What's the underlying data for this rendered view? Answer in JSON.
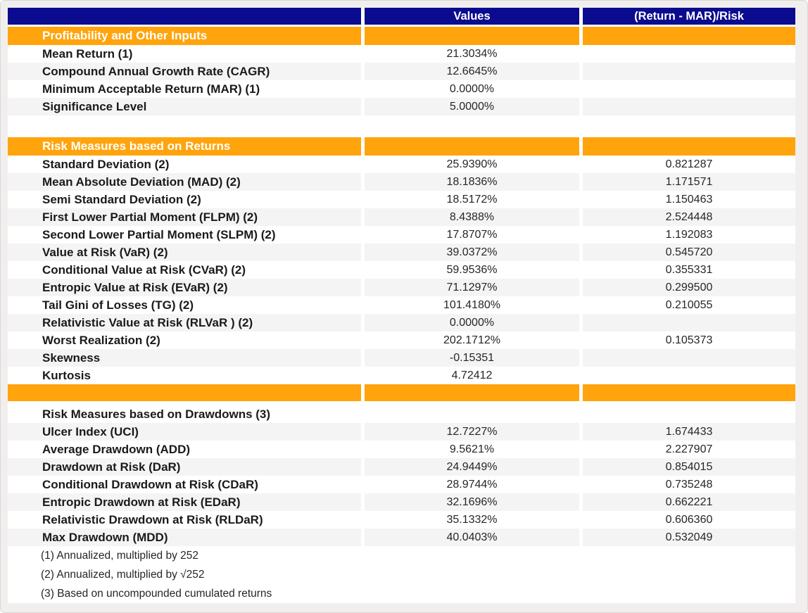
{
  "colors": {
    "header_navy": "#0B0B8F",
    "section_orange": "#FFA40D",
    "stripe_gray": "#F5F4F4",
    "page_background": "#F1EFEE",
    "header_text": "#FFFFFF",
    "label_text": "#1A1A1A",
    "value_text": "#262626"
  },
  "chart_data": {
    "type": "table",
    "columns": [
      "",
      "Values",
      "(Return - MAR)/Risk"
    ],
    "rows": [
      {
        "t": "section",
        "label": "Profitability and Other Inputs"
      },
      {
        "t": "data",
        "label": "Mean Return (1)",
        "value": "21.3034%",
        "ratio": ""
      },
      {
        "t": "data",
        "label": "Compound Annual Growth Rate (CAGR)",
        "value": "12.6645%",
        "ratio": ""
      },
      {
        "t": "data",
        "label": "Minimum Acceptable Return (MAR) (1)",
        "value": "0.0000%",
        "ratio": ""
      },
      {
        "t": "data",
        "label": "Significance Level",
        "value": "5.0000%",
        "ratio": ""
      },
      {
        "t": "spacer"
      },
      {
        "t": "section",
        "label": "Risk Measures based on Returns"
      },
      {
        "t": "data",
        "label": "Standard Deviation (2)",
        "value": "25.9390%",
        "ratio": "0.821287"
      },
      {
        "t": "data",
        "label": "Mean Absolute Deviation (MAD) (2)",
        "value": "18.1836%",
        "ratio": "1.171571"
      },
      {
        "t": "data",
        "label": "Semi Standard Deviation (2)",
        "value": "18.5172%",
        "ratio": "1.150463"
      },
      {
        "t": "data",
        "label": "First Lower Partial Moment (FLPM) (2)",
        "value": "8.4388%",
        "ratio": "2.524448"
      },
      {
        "t": "data",
        "label": "Second Lower Partial Moment (SLPM) (2)",
        "value": "17.8707%",
        "ratio": "1.192083"
      },
      {
        "t": "data",
        "label": "Value at Risk (VaR) (2)",
        "value": "39.0372%",
        "ratio": "0.545720"
      },
      {
        "t": "data",
        "label": "Conditional Value at Risk (CVaR) (2)",
        "value": "59.9536%",
        "ratio": "0.355331"
      },
      {
        "t": "data",
        "label": "Entropic Value at Risk (EVaR) (2)",
        "value": "71.1297%",
        "ratio": "0.299500"
      },
      {
        "t": "data",
        "label": "Tail Gini of Losses (TG) (2)",
        "value": "101.4180%",
        "ratio": "0.210055"
      },
      {
        "t": "data",
        "label": "Relativistic Value at Risk (RLVaR ) (2)",
        "value": "0.0000%",
        "ratio": ""
      },
      {
        "t": "data",
        "label": "Worst Realization (2)",
        "value": "202.1712%",
        "ratio": "0.105373"
      },
      {
        "t": "data",
        "label": "Skewness",
        "value": "-0.15351",
        "ratio": ""
      },
      {
        "t": "data",
        "label": "Kurtosis",
        "value": "4.72412",
        "ratio": ""
      },
      {
        "t": "divider"
      },
      {
        "t": "gap"
      },
      {
        "t": "subheader",
        "label": "Risk Measures based on Drawdowns (3)"
      },
      {
        "t": "data",
        "label": "Ulcer Index (UCI)",
        "value": "12.7227%",
        "ratio": "1.674433"
      },
      {
        "t": "data",
        "label": "Average Drawdown (ADD)",
        "value": "9.5621%",
        "ratio": "2.227907"
      },
      {
        "t": "data",
        "label": "Drawdown at Risk (DaR)",
        "value": "24.9449%",
        "ratio": "0.854015"
      },
      {
        "t": "data",
        "label": "Conditional Drawdown at Risk (CDaR)",
        "value": "28.9744%",
        "ratio": "0.735248"
      },
      {
        "t": "data",
        "label": "Entropic Drawdown at Risk (EDaR)",
        "value": "32.1696%",
        "ratio": "0.662221"
      },
      {
        "t": "data",
        "label": "Relativistic Drawdown at Risk (RLDaR)",
        "value": "35.1332%",
        "ratio": "0.606360"
      },
      {
        "t": "data",
        "label": "Max Drawdown (MDD)",
        "value": "40.0403%",
        "ratio": "0.532049"
      },
      {
        "t": "footnote",
        "label": "(1) Annualized, multiplied by 252"
      },
      {
        "t": "footnote",
        "label": "(2) Annualized, multiplied by √252"
      },
      {
        "t": "footnote",
        "label": "(3) Based on uncompounded cumulated returns"
      }
    ]
  }
}
